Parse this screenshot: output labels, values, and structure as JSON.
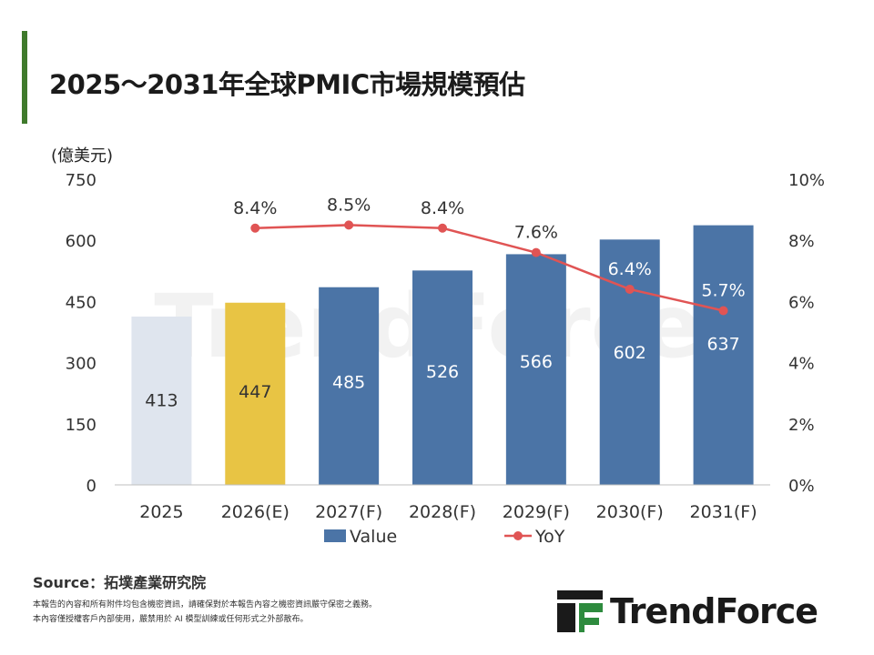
{
  "header": {
    "title": "2025～2031年全球PMIC市場規模預估"
  },
  "chart_data": {
    "type": "bar",
    "categories": [
      "2025",
      "2026(E)",
      "2027(F)",
      "2028(F)",
      "2029(F)",
      "2030(F)",
      "2031(F)"
    ],
    "y_unit_label": "(億美元)",
    "ylim": [
      0,
      750
    ],
    "y_ticks": [
      "0",
      "150",
      "300",
      "450",
      "600",
      "750"
    ],
    "y2lim": [
      0,
      10
    ],
    "y2_ticks": [
      "0%",
      "2%",
      "4%",
      "6%",
      "8%",
      "10%"
    ],
    "series": [
      {
        "name": "Value",
        "type": "bar",
        "values": [
          413,
          447,
          485,
          526,
          566,
          602,
          637
        ],
        "labels": [
          "413",
          "447",
          "485",
          "526",
          "566",
          "602",
          "637"
        ],
        "colors": [
          "#dfe5ee",
          "#e8c444",
          "#4b74a6",
          "#4b74a6",
          "#4b74a6",
          "#4b74a6",
          "#4b74a6"
        ]
      },
      {
        "name": "YoY",
        "type": "line",
        "axis": "right",
        "values": [
          null,
          8.4,
          8.5,
          8.4,
          7.6,
          6.4,
          5.7
        ],
        "labels": [
          "",
          "8.4%",
          "8.5%",
          "8.4%",
          "7.6%",
          "6.4%",
          "5.7%"
        ],
        "color": "#e05454"
      }
    ],
    "legend": {
      "position": "bottom",
      "items": [
        "Value",
        "YoY"
      ]
    },
    "grid": false,
    "watermark": "TrendForce"
  },
  "footer": {
    "source": "Source：拓墣產業研究院",
    "disclaimer_1": "本報告的內容和所有附件均包含機密資訊，請確保對於本報告內容之機密資訊嚴守保密之義務。",
    "disclaimer_2": "本內容僅授權客戶內部使用，嚴禁用於 AI 模型訓練或任何形式之外部散布。",
    "logo_text": "TrendForce"
  },
  "colors": {
    "accent": "#3f7a2c",
    "bar_base": "#dfe5ee",
    "bar_estimate": "#e8c444",
    "bar_forecast": "#4b74a6",
    "yoy_line": "#e05454"
  }
}
